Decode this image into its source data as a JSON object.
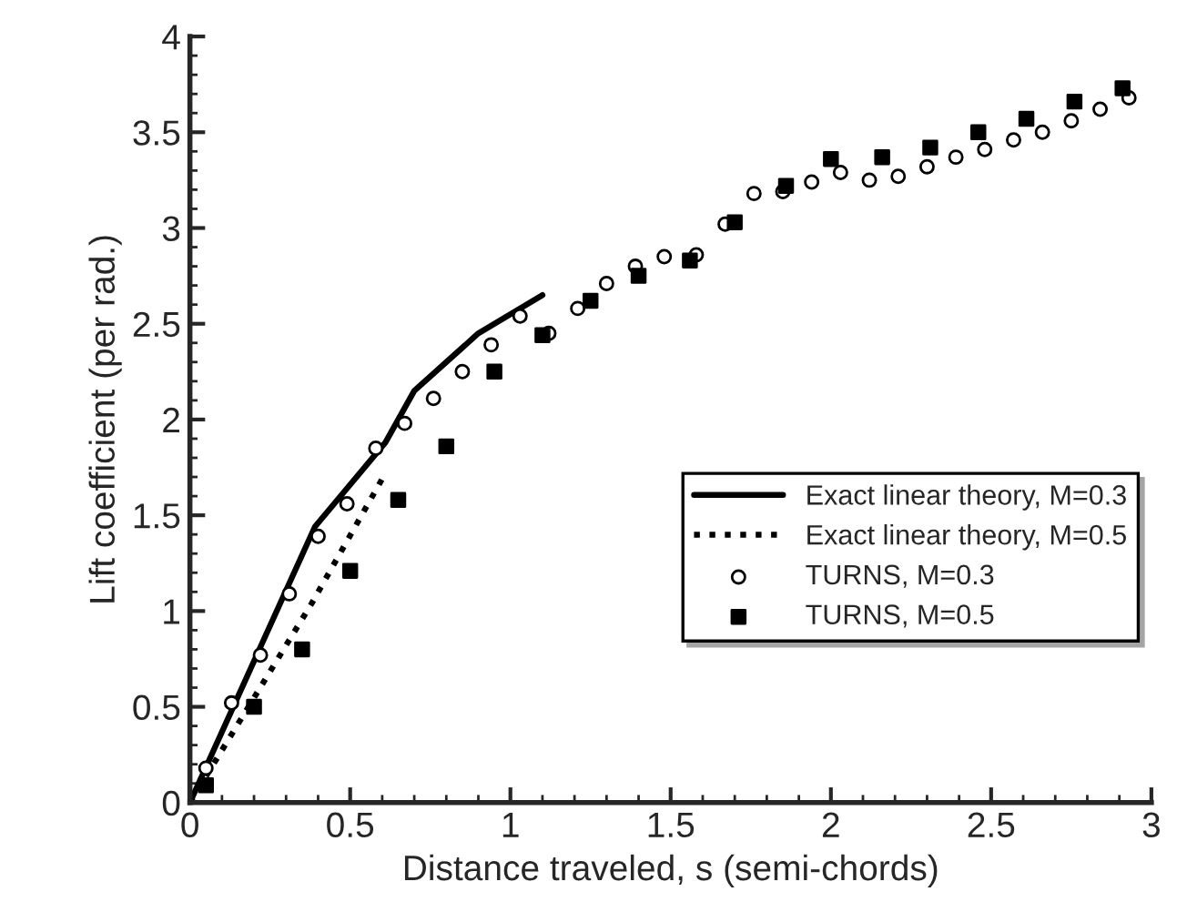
{
  "chart_data": {
    "type": "scatter",
    "xlabel": "Distance traveled, s (semi-chords)",
    "ylabel": "Lift coefficient (per rad.)",
    "xlim": [
      0,
      3
    ],
    "ylim": [
      0,
      4
    ],
    "xticks": [
      0,
      0.5,
      1,
      1.5,
      2,
      2.5,
      3
    ],
    "yticks": [
      0,
      0.5,
      1,
      1.5,
      2,
      2.5,
      3,
      3.5,
      4
    ],
    "legend": "lower right",
    "grid": false,
    "series": [
      {
        "name": "Exact linear theory, M=0.3",
        "type": "line",
        "line_style": "solid",
        "marker": "none",
        "color": "#000000",
        "x": [
          0,
          0.39,
          0.61,
          0.7,
          0.9,
          1.1
        ],
        "values": [
          0,
          1.44,
          1.88,
          2.15,
          2.45,
          2.65
        ]
      },
      {
        "name": "Exact linear theory, M=0.5",
        "type": "line",
        "line_style": "dotted",
        "marker": "none",
        "color": "#000000",
        "x": [
          0,
          0.38,
          0.6
        ],
        "values": [
          0,
          1.04,
          1.69
        ]
      },
      {
        "name": "TURNS, M=0.3",
        "marker": "circle",
        "color": "#000000",
        "x": [
          0.05,
          0.13,
          0.22,
          0.31,
          0.4,
          0.49,
          0.58,
          0.67,
          0.76,
          0.85,
          0.94,
          1.03,
          1.12,
          1.21,
          1.3,
          1.39,
          1.48,
          1.58,
          1.67,
          1.76,
          1.85,
          1.94,
          2.03,
          2.12,
          2.21,
          2.3,
          2.39,
          2.48,
          2.57,
          2.66,
          2.75,
          2.84,
          2.93
        ],
        "values": [
          0.18,
          0.52,
          0.77,
          1.09,
          1.39,
          1.56,
          1.85,
          1.98,
          2.11,
          2.25,
          2.39,
          2.54,
          2.45,
          2.58,
          2.71,
          2.8,
          2.85,
          2.86,
          3.02,
          3.18,
          3.19,
          3.24,
          3.29,
          3.25,
          3.27,
          3.32,
          3.37,
          3.41,
          3.46,
          3.5,
          3.56,
          3.62,
          3.68
        ]
      },
      {
        "name": "TURNS, M=0.5",
        "marker": "square",
        "color": "#000000",
        "x": [
          0.05,
          0.2,
          0.35,
          0.5,
          0.65,
          0.8,
          0.95,
          1.1,
          1.25,
          1.4,
          1.56,
          1.7,
          1.86,
          2.0,
          2.16,
          2.31,
          2.46,
          2.61,
          2.76,
          2.91
        ],
        "values": [
          0.09,
          0.5,
          0.8,
          1.21,
          1.58,
          1.86,
          2.25,
          2.44,
          2.62,
          2.75,
          2.83,
          3.03,
          3.22,
          3.36,
          3.37,
          3.42,
          3.5,
          3.57,
          3.66,
          3.73
        ]
      }
    ]
  }
}
